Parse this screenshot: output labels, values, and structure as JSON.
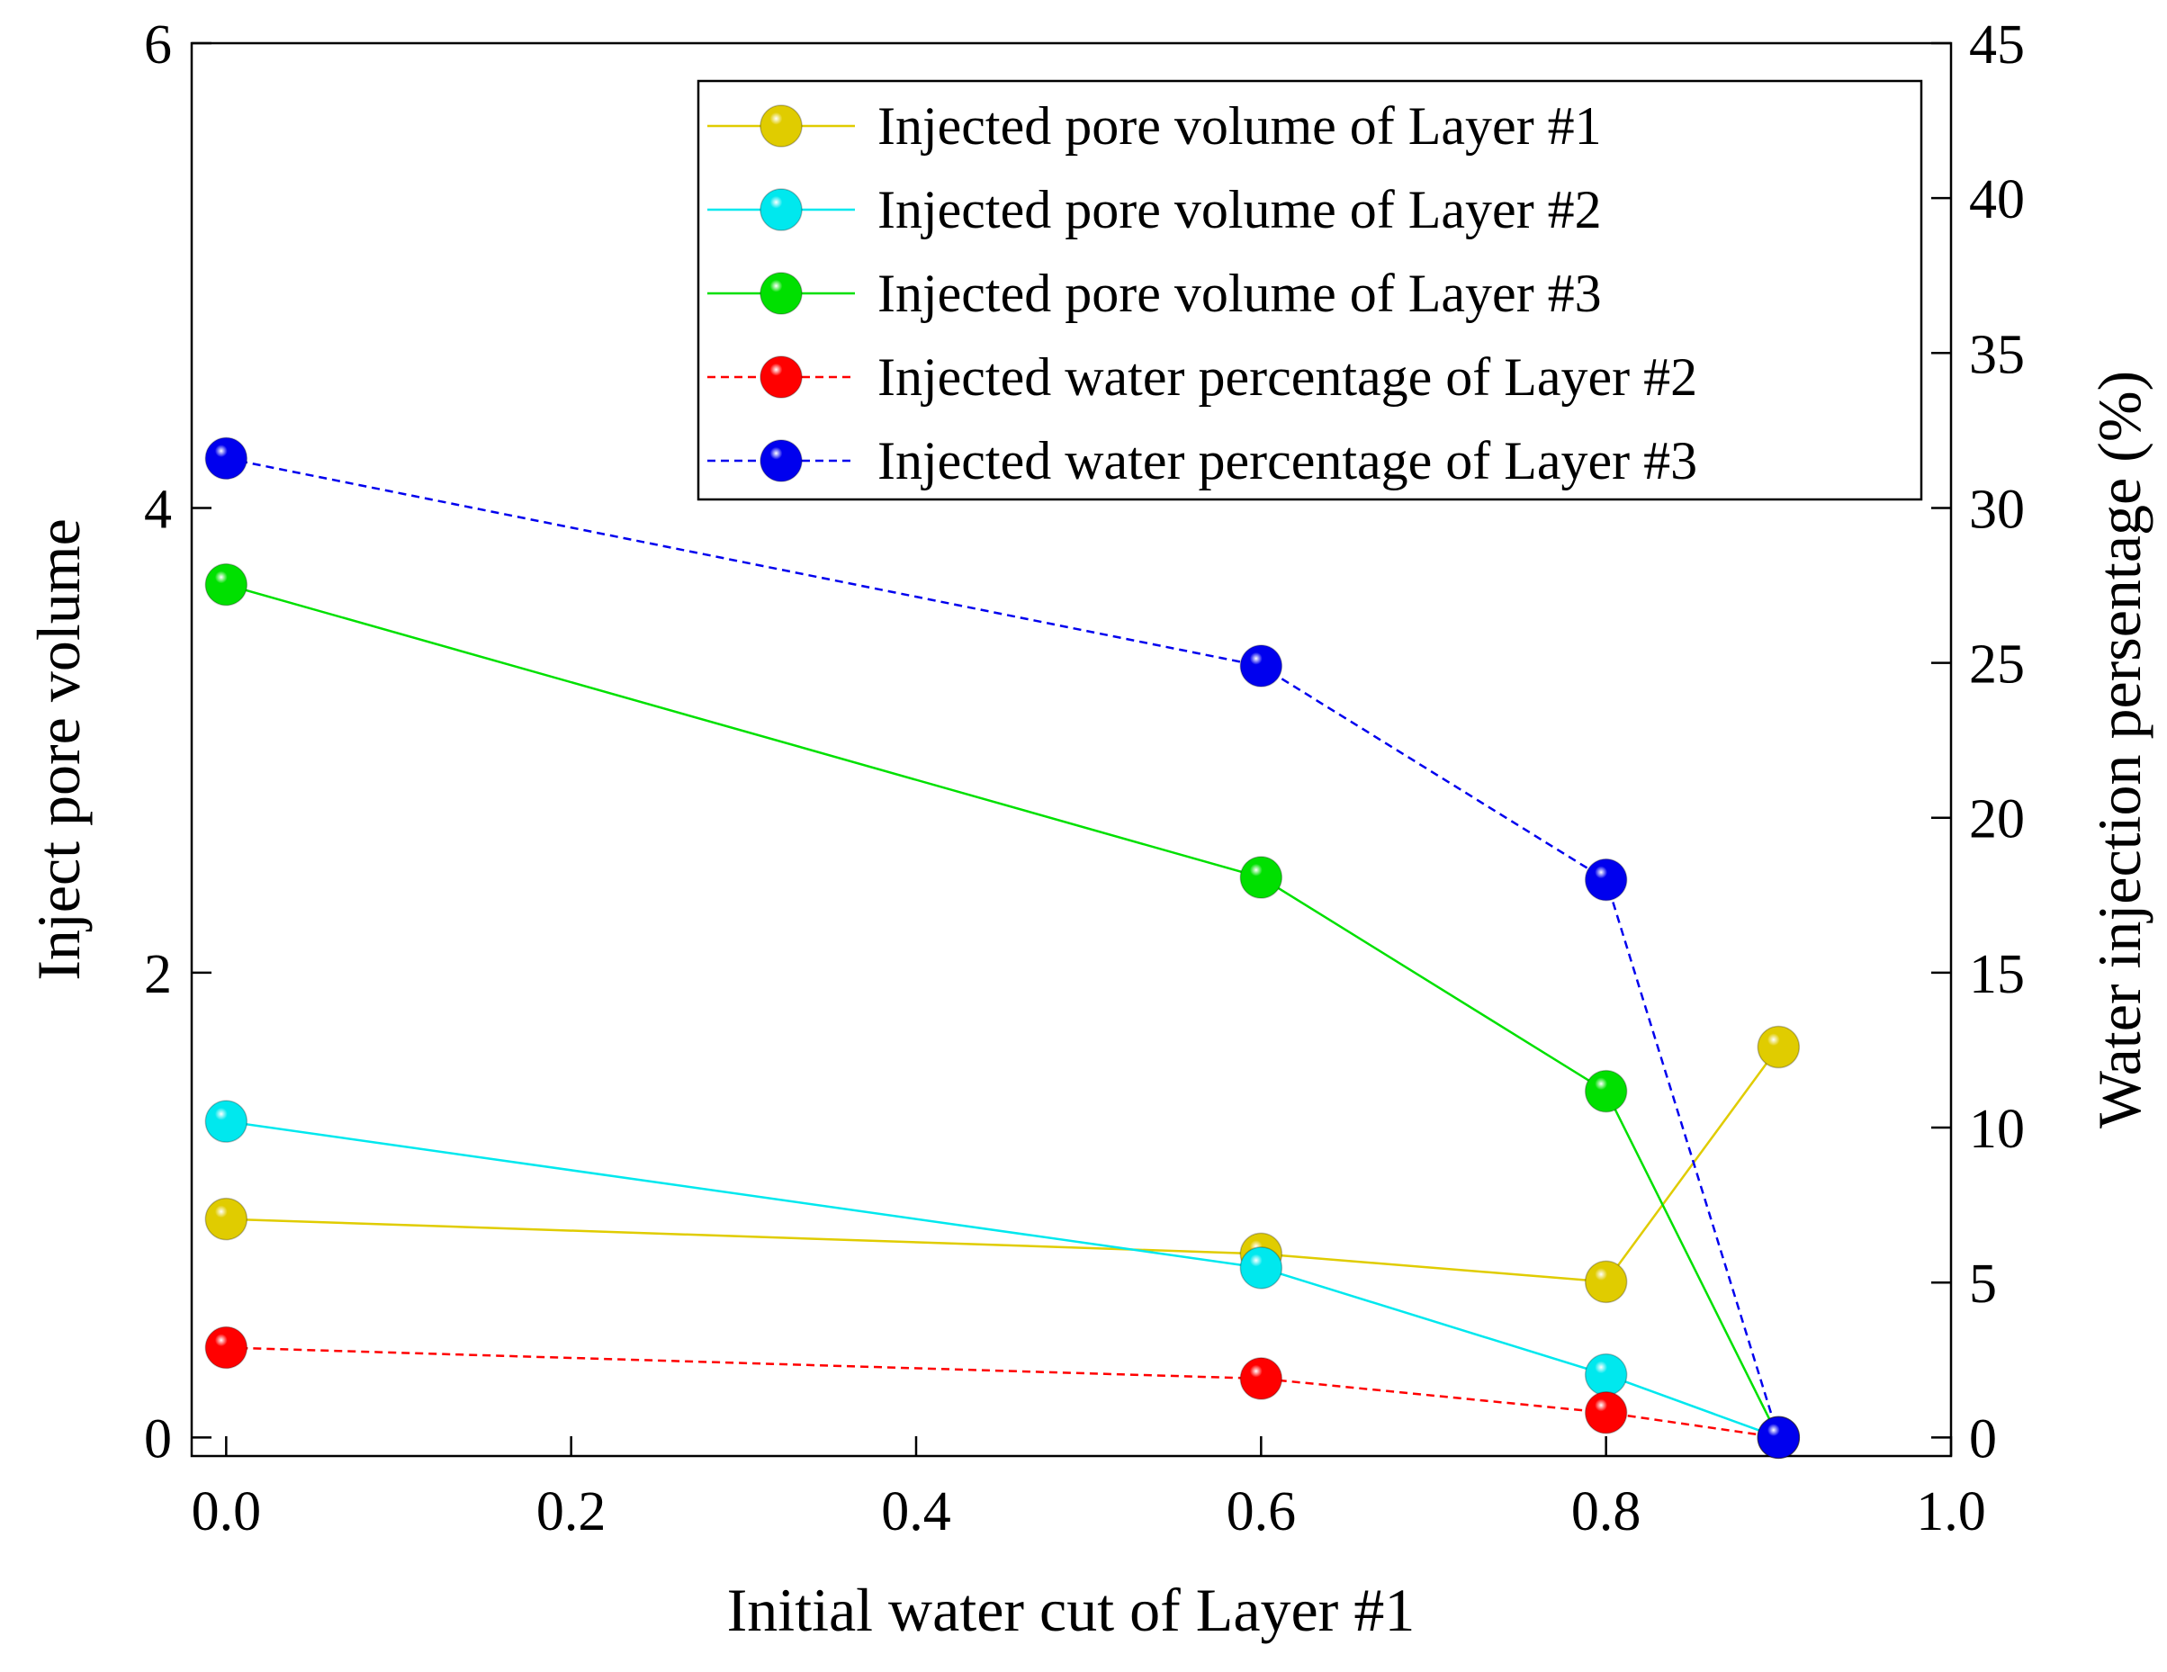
{
  "chart_data": {
    "type": "line",
    "xlabel": "Initial water cut of Layer #1",
    "ylabel": "Inject pore volume",
    "y2label": "Water injection persentage (%)",
    "xlim": [
      -0.02,
      1.0
    ],
    "ylim": [
      -0.08,
      6.0
    ],
    "y2lim": [
      -0.6,
      45
    ],
    "xticks": [
      0.0,
      0.2,
      0.4,
      0.6,
      0.8,
      1.0
    ],
    "xtick_labels": [
      "0.0",
      "0.2",
      "0.4",
      "0.6",
      "0.8",
      "1.0"
    ],
    "yticks": [
      0,
      2,
      4,
      6
    ],
    "ytick_labels": [
      "0",
      "2",
      "4",
      "6"
    ],
    "y2ticks": [
      0,
      5,
      10,
      15,
      20,
      25,
      30,
      35,
      40,
      45
    ],
    "y2tick_labels": [
      "0",
      "5",
      "10",
      "15",
      "20",
      "25",
      "30",
      "35",
      "40",
      "45"
    ],
    "x": [
      0.0,
      0.6,
      0.8,
      0.9
    ],
    "legend_position": "top-right",
    "series": [
      {
        "name": "Injected pore volume of Layer #1",
        "axis": "left",
        "color": "#e0cc00",
        "dashed": false,
        "values": [
          0.94,
          0.79,
          0.67,
          1.68
        ]
      },
      {
        "name": "Injected pore volume of Layer #2",
        "axis": "left",
        "color": "#00e8ee",
        "dashed": false,
        "values": [
          1.36,
          0.73,
          0.27,
          0.0
        ]
      },
      {
        "name": "Injected pore volume of Layer #3",
        "axis": "left",
        "color": "#00e000",
        "dashed": false,
        "values": [
          3.67,
          2.41,
          1.49,
          0.0
        ]
      },
      {
        "name": "Injected water percentage of Layer #2",
        "axis": "right",
        "color": "#ff0000",
        "dashed": true,
        "values": [
          2.9,
          1.9,
          0.8,
          0.0
        ]
      },
      {
        "name": "Injected water percentage of Layer #3",
        "axis": "right",
        "color": "#0000ee",
        "dashed": true,
        "values": [
          31.6,
          24.9,
          18.0,
          0.0
        ]
      }
    ]
  }
}
